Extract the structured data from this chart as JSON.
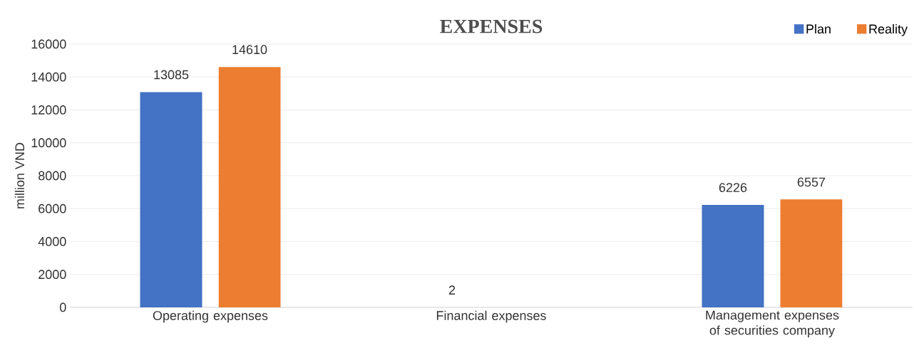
{
  "chart_data": {
    "type": "bar",
    "title": "EXPENSES",
    "ylabel": "million VND",
    "categories": [
      "Operating expenses",
      "Financial expenses",
      "Management expenses of securities company"
    ],
    "series": [
      {
        "name": "Plan",
        "color": "#4472c4",
        "values": [
          13085,
          2,
          6226
        ]
      },
      {
        "name": "Reality",
        "color": "#ed7d31",
        "values": [
          14610,
          null,
          6557
        ]
      }
    ],
    "ylim": [
      0,
      16000
    ],
    "yticks": [
      0,
      2000,
      4000,
      6000,
      8000,
      10000,
      12000,
      14000,
      16000
    ],
    "grid": "y",
    "legend": "top right",
    "data_labels": true
  }
}
